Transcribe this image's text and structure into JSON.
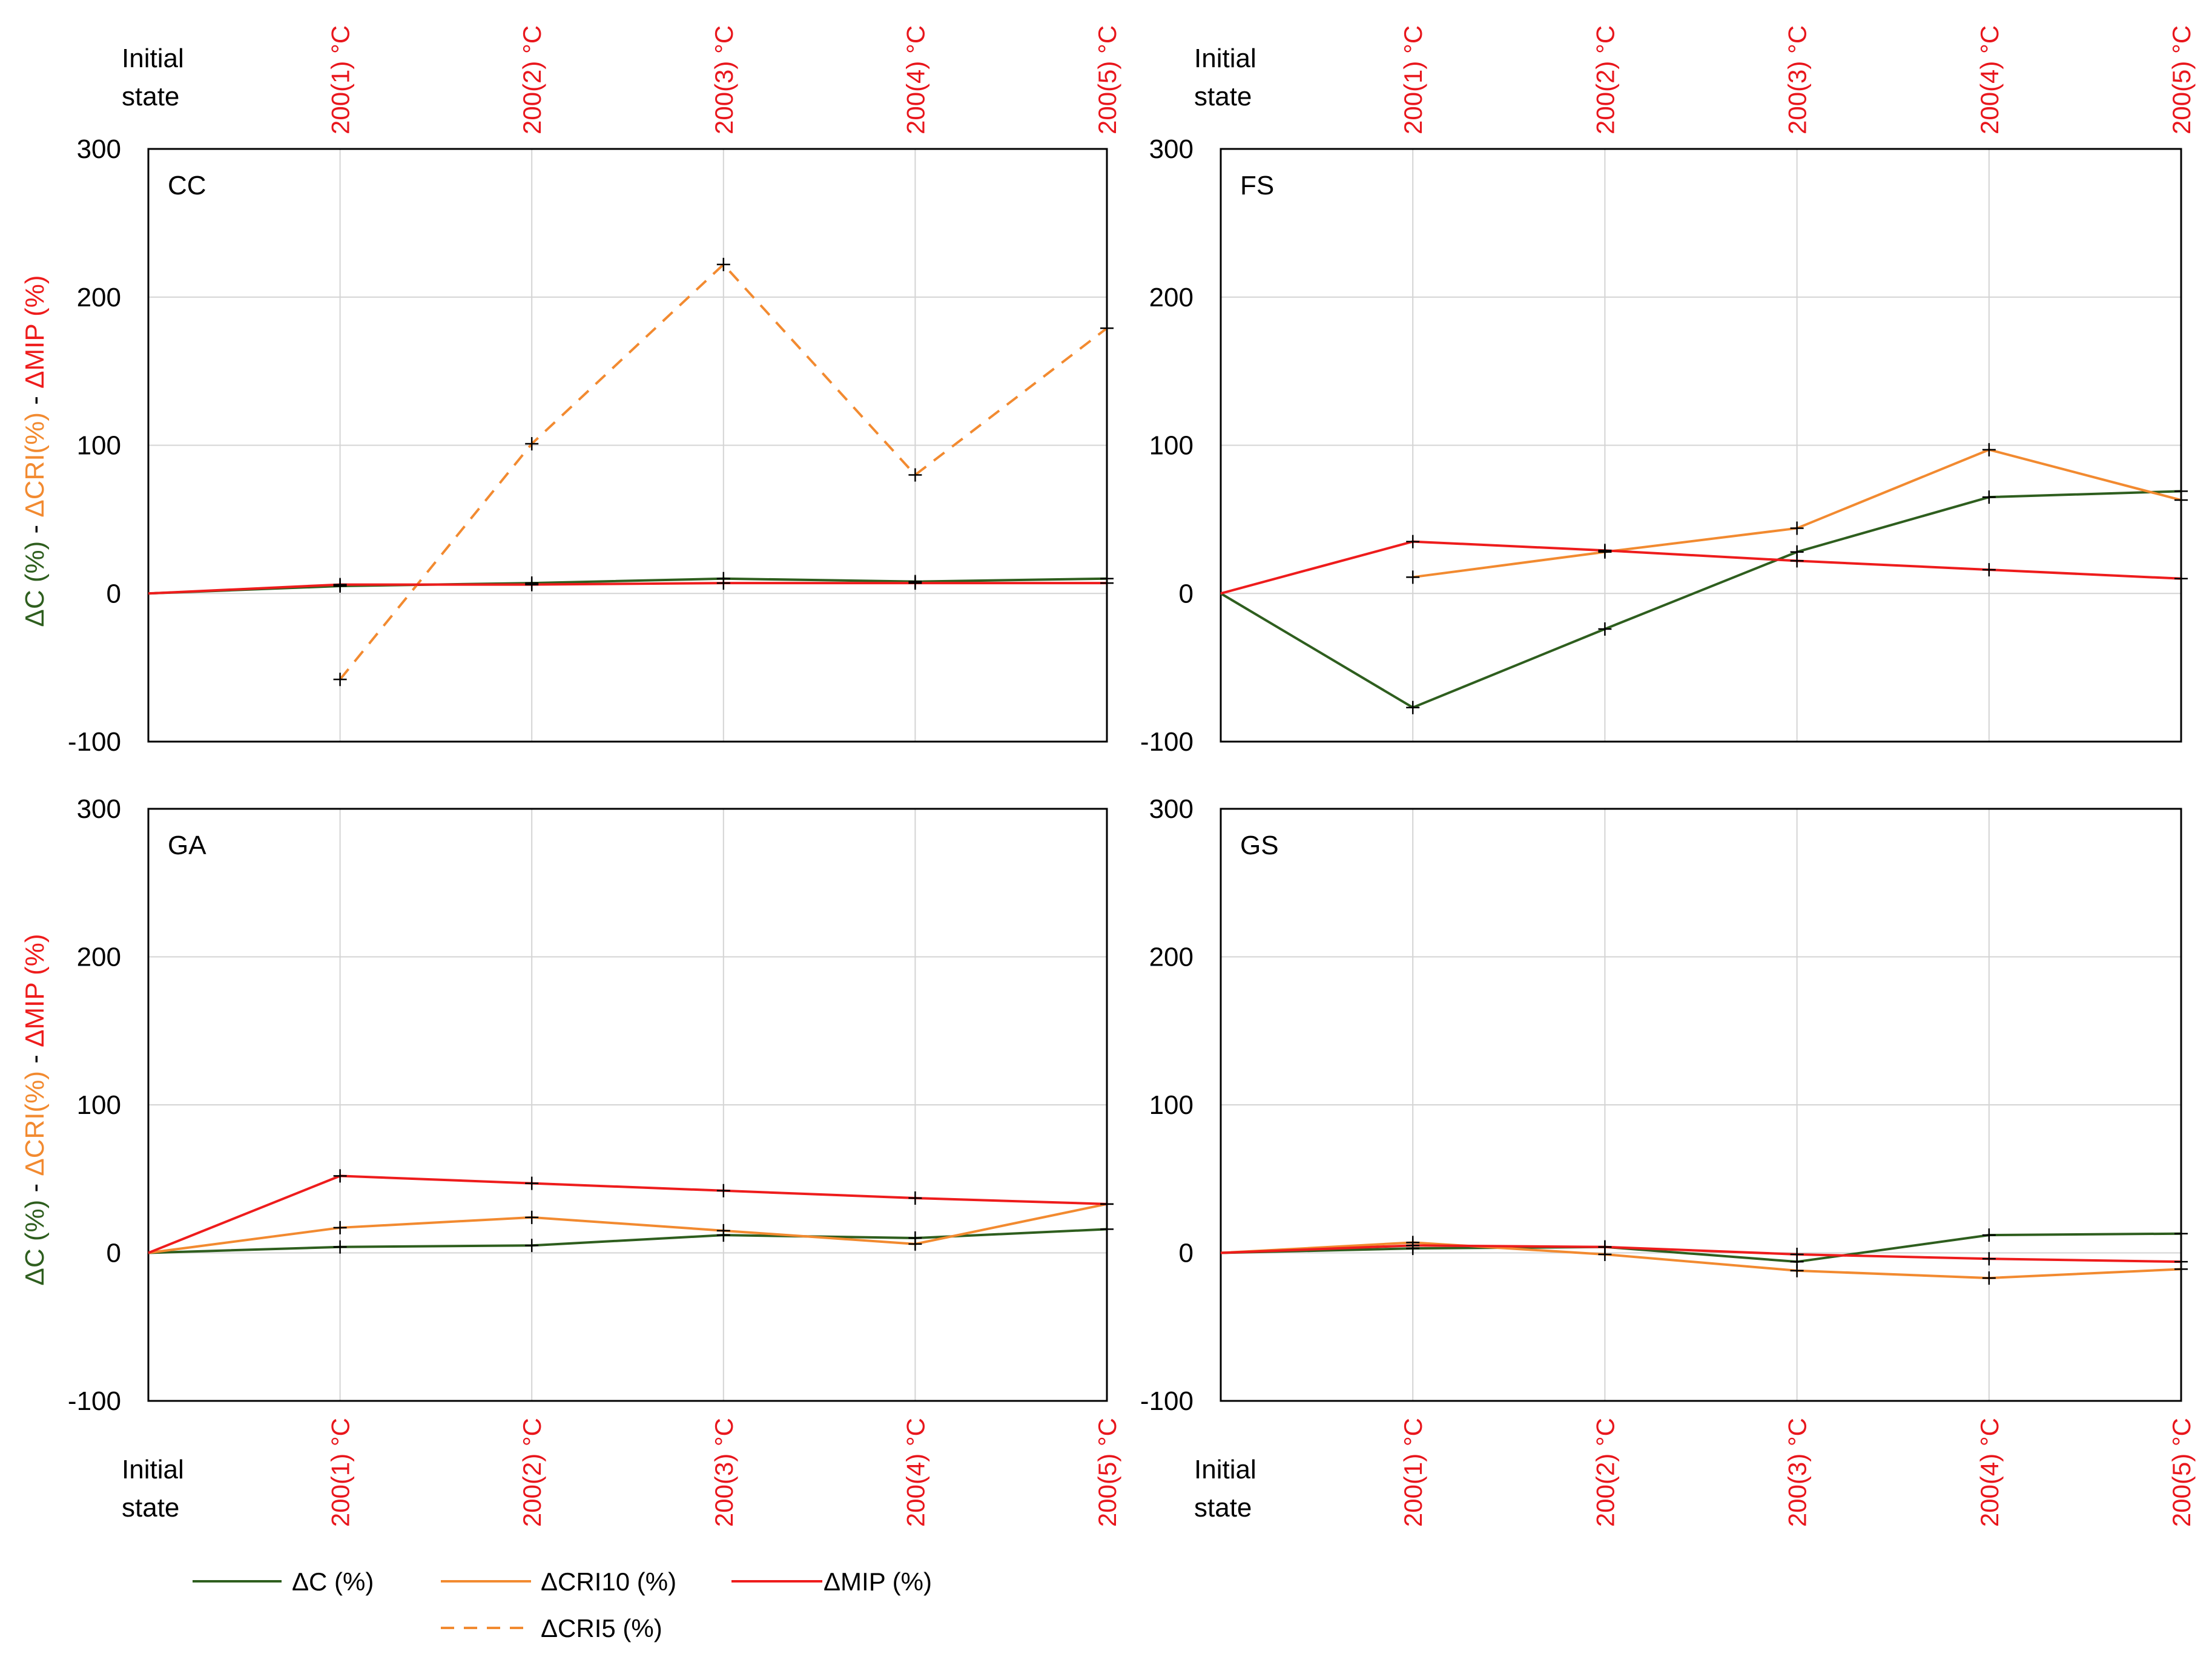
{
  "colors": {
    "dC": "#2e5e1e",
    "dCRI10": "#f28a30",
    "dCRI5": "#f28a30",
    "dMIP": "#ee1c1c",
    "tick_red": "#e8161c",
    "axis": "#000000",
    "grid": "#d4d4d4"
  },
  "legend": {
    "dC": "ΔC (%)",
    "dCRI10": "ΔCRI10 (%)",
    "dMIP": "ΔMIP (%)",
    "dCRI5": "ΔCRI5 (%)"
  },
  "ylabel": {
    "part1": "ΔC (%)",
    "sep1": " - ",
    "part2": "ΔCRI(%)",
    "sep2": " - ",
    "part3": "ΔMIP (%)"
  },
  "chart_data": [
    {
      "type": "line",
      "title": "CC",
      "categories": [
        "Initial state",
        "200(1) °C",
        "200(2) °C",
        "200(3) °C",
        "200(4) °C",
        "200(5) °C"
      ],
      "ylim": [
        -100,
        300
      ],
      "yticks": [
        -100,
        0,
        100,
        200,
        300
      ],
      "series": [
        {
          "name": "ΔC (%)",
          "key": "dC",
          "values": [
            0,
            5,
            7,
            10,
            8,
            10
          ]
        },
        {
          "name": "ΔCRI5 (%)",
          "key": "dCRI5",
          "values": [
            null,
            -58,
            101,
            222,
            80,
            179
          ]
        },
        {
          "name": "ΔMIP (%)",
          "key": "dMIP",
          "values": [
            0,
            6,
            6,
            7,
            7,
            7
          ]
        }
      ]
    },
    {
      "type": "line",
      "title": "FS",
      "categories": [
        "Initial state",
        "200(1) °C",
        "200(2) °C",
        "200(3) °C",
        "200(4) °C",
        "200(5) °C"
      ],
      "ylim": [
        -100,
        300
      ],
      "yticks": [
        -100,
        0,
        100,
        200,
        300
      ],
      "series": [
        {
          "name": "ΔC (%)",
          "key": "dC",
          "values": [
            0,
            -77,
            -24,
            28,
            65,
            69
          ]
        },
        {
          "name": "ΔCRI10 (%)",
          "key": "dCRI10",
          "values": [
            null,
            11,
            28,
            44,
            97,
            63
          ]
        },
        {
          "name": "ΔMIP (%)",
          "key": "dMIP",
          "values": [
            0,
            35,
            29,
            22,
            16,
            10
          ]
        }
      ]
    },
    {
      "type": "line",
      "title": "GA",
      "categories": [
        "Initial state",
        "200(1) °C",
        "200(2) °C",
        "200(3) °C",
        "200(4) °C",
        "200(5) °C"
      ],
      "ylim": [
        -100,
        300
      ],
      "yticks": [
        -100,
        0,
        100,
        200,
        300
      ],
      "series": [
        {
          "name": "ΔC (%)",
          "key": "dC",
          "values": [
            0,
            4,
            5,
            12,
            10,
            16
          ]
        },
        {
          "name": "ΔCRI10 (%)",
          "key": "dCRI10",
          "values": [
            0,
            17,
            24,
            15,
            6,
            33
          ]
        },
        {
          "name": "ΔMIP (%)",
          "key": "dMIP",
          "values": [
            0,
            52,
            47,
            42,
            37,
            33
          ]
        }
      ]
    },
    {
      "type": "line",
      "title": "GS",
      "categories": [
        "Initial state",
        "200(1) °C",
        "200(2) °C",
        "200(3) °C",
        "200(4) °C",
        "200(5) °C"
      ],
      "ylim": [
        -100,
        300
      ],
      "yticks": [
        -100,
        0,
        100,
        200,
        300
      ],
      "series": [
        {
          "name": "ΔC (%)",
          "key": "dC",
          "values": [
            0,
            3,
            4,
            -6,
            12,
            13
          ]
        },
        {
          "name": "ΔCRI10 (%)",
          "key": "dCRI10",
          "values": [
            0,
            7,
            -1,
            -12,
            -17,
            -11
          ]
        },
        {
          "name": "ΔMIP (%)",
          "key": "dMIP",
          "values": [
            0,
            5,
            4,
            -1,
            -4,
            -6
          ]
        }
      ]
    }
  ]
}
